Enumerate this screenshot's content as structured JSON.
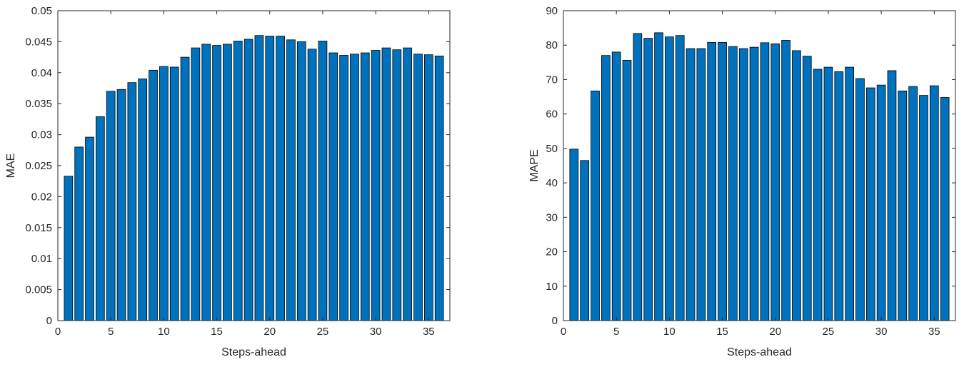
{
  "chart_data": [
    {
      "type": "bar",
      "title": "",
      "xlabel": "Steps-ahead",
      "ylabel": "MAE",
      "xlim": [
        0,
        37
      ],
      "ylim": [
        0,
        0.05
      ],
      "xticks": [
        0,
        5,
        10,
        15,
        20,
        25,
        30,
        35
      ],
      "xtick_labels": [
        "0",
        "5",
        "10",
        "15",
        "20",
        "25",
        "30",
        "35"
      ],
      "yticks": [
        0,
        0.005,
        0.01,
        0.015,
        0.02,
        0.025,
        0.03,
        0.035,
        0.04,
        0.045,
        0.05
      ],
      "ytick_labels": [
        "0",
        "0.005",
        "0.01",
        "0.015",
        "0.02",
        "0.025",
        "0.03",
        "0.035",
        "0.04",
        "0.045",
        "0.05"
      ],
      "bar_color": "#0072BD",
      "grid": false,
      "categories": [
        1,
        2,
        3,
        4,
        5,
        6,
        7,
        8,
        9,
        10,
        11,
        12,
        13,
        14,
        15,
        16,
        17,
        18,
        19,
        20,
        21,
        22,
        23,
        24,
        25,
        26,
        27,
        28,
        29,
        30,
        31,
        32,
        33,
        34,
        35,
        36
      ],
      "values": [
        0.0233,
        0.028,
        0.0296,
        0.0329,
        0.037,
        0.0373,
        0.0384,
        0.039,
        0.0404,
        0.041,
        0.0409,
        0.0425,
        0.044,
        0.0446,
        0.0444,
        0.0446,
        0.0451,
        0.0454,
        0.046,
        0.0459,
        0.0459,
        0.0453,
        0.045,
        0.0438,
        0.0451,
        0.0432,
        0.0428,
        0.043,
        0.0432,
        0.0436,
        0.044,
        0.0437,
        0.044,
        0.043,
        0.0429,
        0.0427
      ]
    },
    {
      "type": "bar",
      "title": "",
      "xlabel": "Steps-ahead",
      "ylabel": "MAPE",
      "xlim": [
        0,
        37
      ],
      "ylim": [
        0,
        90
      ],
      "xticks": [
        0,
        5,
        10,
        15,
        20,
        25,
        30,
        35
      ],
      "xtick_labels": [
        "0",
        "5",
        "10",
        "15",
        "20",
        "25",
        "30",
        "35"
      ],
      "yticks": [
        0,
        10,
        20,
        30,
        40,
        50,
        60,
        70,
        80,
        90
      ],
      "ytick_labels": [
        "0",
        "10",
        "20",
        "30",
        "40",
        "50",
        "60",
        "70",
        "80",
        "90"
      ],
      "bar_color": "#0072BD",
      "grid": false,
      "categories": [
        1,
        2,
        3,
        4,
        5,
        6,
        7,
        8,
        9,
        10,
        11,
        12,
        13,
        14,
        15,
        16,
        17,
        18,
        19,
        20,
        21,
        22,
        23,
        24,
        25,
        26,
        27,
        28,
        29,
        30,
        31,
        32,
        33,
        34,
        35,
        36
      ],
      "values": [
        49.8,
        46.5,
        66.7,
        77.0,
        78.0,
        75.6,
        83.4,
        82.0,
        83.6,
        82.4,
        82.8,
        79.0,
        79.0,
        80.8,
        80.8,
        79.6,
        79.0,
        79.4,
        80.7,
        80.4,
        81.4,
        78.4,
        76.8,
        73.0,
        73.6,
        72.3,
        73.6,
        70.3,
        67.6,
        68.4,
        72.6,
        66.7,
        68.0,
        65.4,
        68.2,
        64.8
      ]
    }
  ]
}
